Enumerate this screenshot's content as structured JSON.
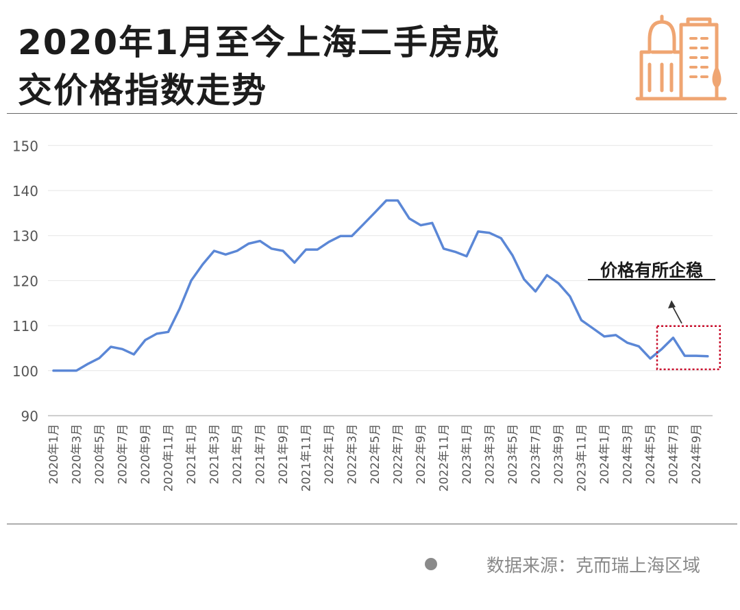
{
  "header": {
    "title_line1": "2020年1月至今上海二手房成",
    "title_line2": "交价格指数走势",
    "logo_icon": "city-buildings-icon",
    "logo_color": "#EFA572"
  },
  "source": {
    "text": "数据来源：克而瑞上海区域",
    "dot_color": "#8a8a8a"
  },
  "chart_data": {
    "type": "line",
    "title": "",
    "xlabel": "",
    "ylabel": "",
    "ylim": [
      90,
      150
    ],
    "yticks": [
      90,
      100,
      110,
      120,
      130,
      140,
      150
    ],
    "grid": true,
    "line_color": "#5B87D6",
    "categories": [
      "2020年1月",
      "2020年2月",
      "2020年3月",
      "2020年4月",
      "2020年5月",
      "2020年6月",
      "2020年7月",
      "2020年8月",
      "2020年9月",
      "2020年10月",
      "2020年11月",
      "2020年12月",
      "2021年1月",
      "2021年2月",
      "2021年3月",
      "2021年4月",
      "2021年5月",
      "2021年6月",
      "2021年7月",
      "2021年8月",
      "2021年9月",
      "2021年10月",
      "2021年11月",
      "2021年12月",
      "2022年1月",
      "2022年2月",
      "2022年3月",
      "2022年4月",
      "2022年5月",
      "2022年6月",
      "2022年7月",
      "2022年8月",
      "2022年9月",
      "2022年10月",
      "2022年11月",
      "2022年12月",
      "2023年1月",
      "2023年2月",
      "2023年3月",
      "2023年4月",
      "2023年5月",
      "2023年6月",
      "2023年7月",
      "2023年8月",
      "2023年9月",
      "2023年10月",
      "2023年11月",
      "2023年12月",
      "2024年1月",
      "2024年2月",
      "2024年3月",
      "2024年4月",
      "2024年5月",
      "2024年6月",
      "2024年7月",
      "2024年8月",
      "2024年9月",
      "2024年10月"
    ],
    "tick_labels": [
      "2020年1月",
      "2020年3月",
      "2020年5月",
      "2020年7月",
      "2020年9月",
      "2020年11月",
      "2021年1月",
      "2021年3月",
      "2021年5月",
      "2021年7月",
      "2021年9月",
      "2021年11月",
      "2022年1月",
      "2022年3月",
      "2022年5月",
      "2022年7月",
      "2022年9月",
      "2022年11月",
      "2023年1月",
      "2023年3月",
      "2023年5月",
      "2023年7月",
      "2023年9月",
      "2023年11月",
      "2024年1月",
      "2024年3月",
      "2024年5月",
      "2024年7月",
      "2024年9月"
    ],
    "series": [
      {
        "values": [
          100,
          100,
          100,
          101.5,
          102.8,
          105.3,
          104.8,
          103.6,
          106.8,
          108.2,
          108.6,
          113.8,
          120,
          123.6,
          126.6,
          125.8,
          126.6,
          128.2,
          128.8,
          127.1,
          126.6,
          124,
          126.9,
          126.9,
          128.6,
          129.9,
          129.9,
          132.5,
          135.1,
          137.8,
          137.8,
          133.8,
          132.3,
          132.8,
          127.1,
          126.4,
          125.4,
          130.9,
          130.6,
          129.4,
          125.6,
          120.3,
          117.6,
          121.2,
          119.4,
          116.5,
          111.2,
          109.4,
          107.6,
          107.9,
          106.2,
          105.4,
          102.7,
          104.8,
          107.3,
          103.3,
          103.3,
          103.2
        ]
      }
    ],
    "annotation": {
      "text": "价格有所企稳",
      "box_color": "#C8102E",
      "from_category": "2024年5月",
      "to_category": "2024年10月",
      "from_value": 100.3,
      "to_value": 109.9
    }
  }
}
